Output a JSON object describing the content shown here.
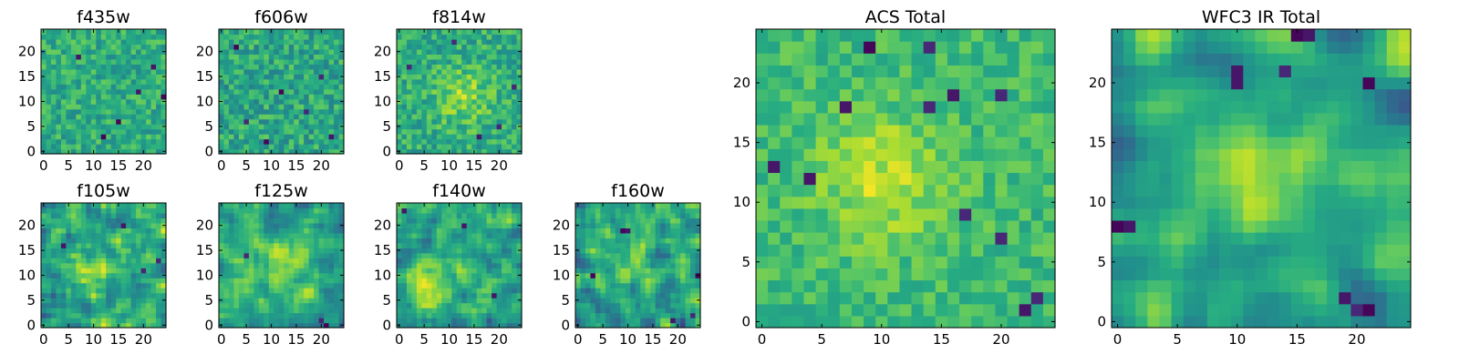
{
  "chart_data": {
    "type": "heatmap",
    "colormap": "viridis",
    "grid_size": [
      25,
      25
    ],
    "value_note": "pixel values shown only as color; no colorbar or data labels in the figure",
    "panels": [
      {
        "title": "f435w",
        "xlim": [
          0,
          24
        ],
        "ylim": [
          0,
          24
        ],
        "xticks": [
          0,
          5,
          10,
          15,
          20
        ],
        "yticks": [
          0,
          5,
          10,
          15,
          20
        ],
        "seed": 11,
        "smooth": 0,
        "mean": 0.62,
        "spread": 0.16,
        "warm_spot": null,
        "dark_cells": [
          [
            22,
            17
          ],
          [
            15,
            6
          ],
          [
            19,
            12
          ],
          [
            7,
            19
          ],
          [
            12,
            3
          ],
          [
            24,
            11
          ]
        ]
      },
      {
        "title": "f606w",
        "xlim": [
          0,
          24
        ],
        "ylim": [
          0,
          24
        ],
        "xticks": [
          0,
          5,
          10,
          15,
          20
        ],
        "yticks": [
          0,
          5,
          10,
          15,
          20
        ],
        "seed": 23,
        "smooth": 0,
        "mean": 0.6,
        "spread": 0.18,
        "warm_spot": null,
        "dark_cells": [
          [
            3,
            21
          ],
          [
            17,
            8
          ],
          [
            9,
            2
          ],
          [
            20,
            15
          ],
          [
            12,
            12
          ],
          [
            5,
            6
          ],
          [
            22,
            3
          ]
        ]
      },
      {
        "title": "f814w",
        "xlim": [
          0,
          24
        ],
        "ylim": [
          0,
          24
        ],
        "xticks": [
          0,
          5,
          10,
          15,
          20
        ],
        "yticks": [
          0,
          5,
          10,
          15,
          20
        ],
        "seed": 37,
        "smooth": 0,
        "mean": 0.62,
        "spread": 0.17,
        "warm_spot": [
          13,
          11
        ],
        "dark_cells": [
          [
            20,
            5
          ],
          [
            2,
            17
          ],
          [
            11,
            22
          ],
          [
            23,
            13
          ],
          [
            16,
            3
          ]
        ]
      },
      {
        "title": "f105w",
        "xlim": [
          0,
          24
        ],
        "ylim": [
          0,
          24
        ],
        "xticks": [
          0,
          5,
          10,
          15,
          20
        ],
        "yticks": [
          0,
          5,
          10,
          15,
          20
        ],
        "seed": 41,
        "smooth": 1,
        "mean": 0.58,
        "spread": 0.2,
        "warm_spot": [
          11,
          11
        ],
        "dark_cells": [
          [
            20,
            11
          ],
          [
            23,
            13
          ],
          [
            4,
            16
          ],
          [
            16,
            20
          ]
        ]
      },
      {
        "title": "f125w",
        "xlim": [
          0,
          24
        ],
        "ylim": [
          0,
          24
        ],
        "xticks": [
          0,
          5,
          10,
          15,
          20
        ],
        "yticks": [
          0,
          5,
          10,
          15,
          20
        ],
        "seed": 53,
        "smooth": 1,
        "mean": 0.6,
        "spread": 0.18,
        "warm_spot": [
          13,
          12
        ],
        "dark_cells": [
          [
            20,
            1
          ],
          [
            21,
            0
          ],
          [
            5,
            14
          ]
        ]
      },
      {
        "title": "f140w",
        "xlim": [
          0,
          24
        ],
        "ylim": [
          0,
          24
        ],
        "xticks": [
          0,
          5,
          10,
          15,
          20
        ],
        "yticks": [
          0,
          5,
          10,
          15,
          20
        ],
        "seed": 67,
        "smooth": 1,
        "mean": 0.6,
        "spread": 0.19,
        "warm_spot": [
          6,
          10
        ],
        "dark_cells": [
          [
            13,
            20
          ],
          [
            19,
            6
          ],
          [
            1,
            23
          ]
        ]
      },
      {
        "title": "f160w",
        "xlim": [
          0,
          24
        ],
        "ylim": [
          0,
          24
        ],
        "xticks": [
          0,
          5,
          10,
          15,
          20
        ],
        "yticks": [
          0,
          5,
          10,
          15,
          20
        ],
        "seed": 79,
        "smooth": 1,
        "mean": 0.58,
        "spread": 0.2,
        "warm_spot": [
          10,
          13
        ],
        "dark_cells": [
          [
            9,
            19
          ],
          [
            10,
            19
          ],
          [
            3,
            10
          ],
          [
            19,
            1
          ],
          [
            23,
            2
          ],
          [
            24,
            10
          ]
        ]
      },
      {
        "title": "ACS Total",
        "xlim": [
          0,
          24
        ],
        "ylim": [
          0,
          24
        ],
        "xticks": [
          0,
          5,
          10,
          15,
          20
        ],
        "yticks": [
          0,
          5,
          10,
          15,
          20
        ],
        "seed": 97,
        "smooth": 0,
        "mean": 0.68,
        "spread": 0.12,
        "warm_spot": [
          10,
          12
        ],
        "dark_cells": [
          [
            9,
            23
          ],
          [
            14,
            23
          ],
          [
            7,
            18
          ],
          [
            14,
            18
          ],
          [
            16,
            19
          ],
          [
            20,
            19
          ],
          [
            17,
            9
          ],
          [
            20,
            7
          ],
          [
            22,
            1
          ],
          [
            23,
            2
          ],
          [
            4,
            12
          ],
          [
            1,
            13
          ]
        ]
      },
      {
        "title": "WFC3 IR Total",
        "xlim": [
          0,
          24
        ],
        "ylim": [
          0,
          24
        ],
        "xticks": [
          0,
          5,
          10,
          15,
          20
        ],
        "yticks": [
          0,
          5,
          10,
          15,
          20
        ],
        "seed": 113,
        "smooth": 2,
        "mean": 0.58,
        "spread": 0.17,
        "warm_spot": [
          11,
          12
        ],
        "dark_cells": [
          [
            16,
            24
          ],
          [
            15,
            24
          ],
          [
            10,
            20
          ],
          [
            10,
            21
          ],
          [
            19,
            2
          ],
          [
            20,
            1
          ],
          [
            21,
            1
          ],
          [
            1,
            8
          ],
          [
            0,
            8
          ],
          [
            14,
            21
          ],
          [
            21,
            20
          ]
        ]
      }
    ]
  }
}
